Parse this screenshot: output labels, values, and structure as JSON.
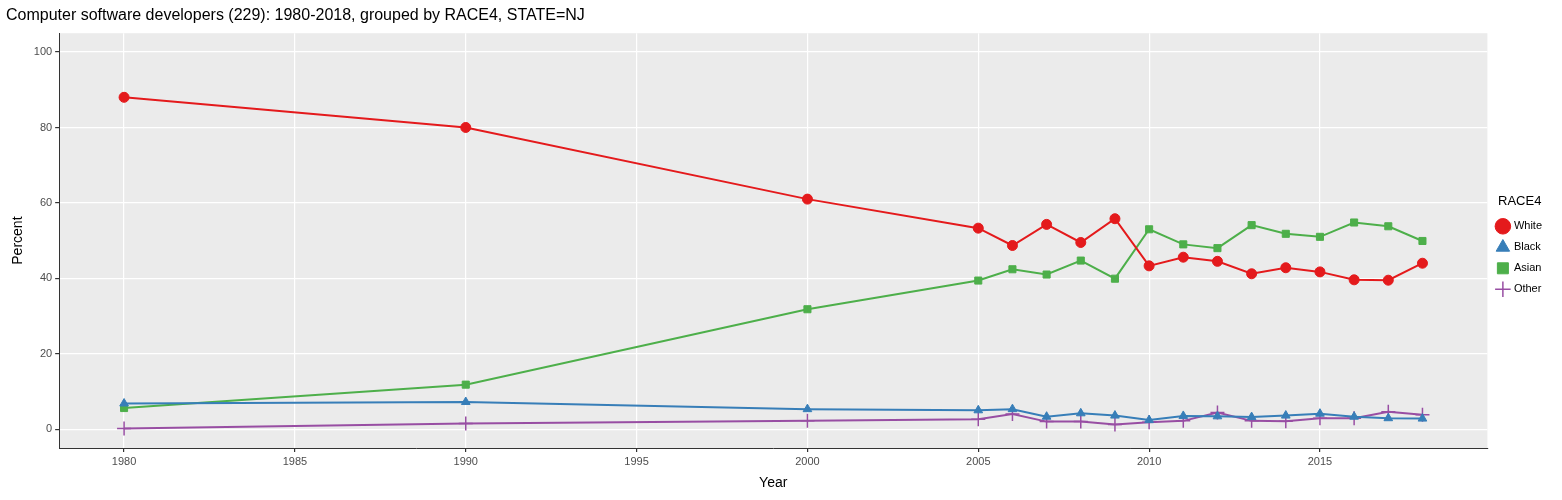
{
  "chart_data": {
    "type": "line",
    "title": "Computer software developers (229): 1980-2018, grouped by RACE4, STATE=NJ",
    "x_label": "Year",
    "y_label": "Percent",
    "legend_title": "RACE4",
    "legend": "right",
    "grid": true,
    "x": [
      1980,
      1990,
      2000,
      2005,
      2006,
      2007,
      2008,
      2009,
      2010,
      2011,
      2012,
      2013,
      2014,
      2015,
      2016,
      2017,
      2018
    ],
    "xlim": [
      1978.1,
      2019.9
    ],
    "xticks": [
      1980,
      1985,
      1990,
      1995,
      2000,
      2005,
      2010,
      2015
    ],
    "ylim": [
      -5,
      105
    ],
    "yticks": [
      0,
      20,
      40,
      60,
      80,
      100
    ],
    "series": [
      {
        "name": "White",
        "color": "#E41A1C",
        "marker": "circle",
        "values": [
          88,
          80,
          61,
          53.3,
          48.7,
          54.3,
          49.5,
          55.8,
          43.3,
          45.6,
          44.5,
          41.2,
          42.8,
          41.7,
          39.6,
          39.5,
          44
        ]
      },
      {
        "name": "Black",
        "color": "#377EB8",
        "marker": "triangle",
        "values": [
          6.8,
          7.2,
          5.3,
          5.0,
          5.3,
          3.3,
          4.2,
          3.6,
          2.4,
          3.5,
          3.4,
          3.2,
          3.6,
          4.1,
          3.3,
          2.9,
          2.8
        ]
      },
      {
        "name": "Asian",
        "color": "#4DAF4A",
        "marker": "square",
        "values": [
          5.6,
          11.8,
          31.8,
          39.4,
          42.4,
          41.0,
          44.7,
          39.9,
          53.0,
          49.0,
          48.0,
          54.1,
          51.8,
          51.0,
          54.8,
          53.8,
          49.9
        ]
      },
      {
        "name": "Other",
        "color": "#984EA3",
        "marker": "cross",
        "values": [
          0.2,
          1.5,
          2.2,
          2.6,
          4.0,
          2.0,
          2.0,
          1.2,
          1.8,
          2.2,
          4.4,
          2.2,
          2.1,
          2.9,
          2.9,
          4.6,
          3.8
        ]
      }
    ]
  }
}
